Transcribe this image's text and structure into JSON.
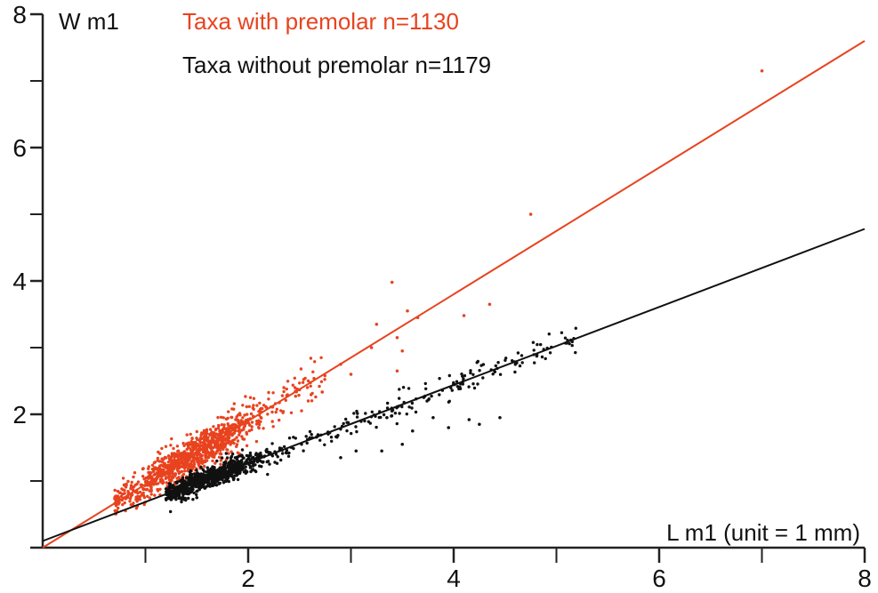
{
  "chart_data": {
    "type": "scatter",
    "title": "",
    "xlabel": "L m1 (unit = 1 mm)",
    "ylabel": "W m1",
    "xlim": [
      0,
      8
    ],
    "ylim": [
      0,
      8
    ],
    "x_ticks": [
      2,
      4,
      6,
      8
    ],
    "y_ticks": [
      2,
      4,
      6,
      8
    ],
    "x_minor_ticks": [
      1,
      3,
      5,
      7
    ],
    "y_minor_ticks": [
      1,
      3,
      5,
      7
    ],
    "grid": false,
    "legend_position": "top",
    "series": [
      {
        "name": "Taxa with premolar n=1130",
        "color": "#e8431f",
        "trendline": {
          "intercept": 0.0,
          "slope": 0.95
        },
        "point_cloud": {
          "count": 1130,
          "x_range": [
            0.7,
            2.75
          ],
          "cluster_center_x": 1.5,
          "residual_sd": 0.13
        },
        "notable_points": [
          {
            "x": 7.0,
            "y": 7.15
          },
          {
            "x": 4.75,
            "y": 5.0
          },
          {
            "x": 3.4,
            "y": 3.98
          },
          {
            "x": 3.55,
            "y": 3.55
          },
          {
            "x": 3.65,
            "y": 3.45
          },
          {
            "x": 4.1,
            "y": 3.48
          },
          {
            "x": 4.35,
            "y": 3.65
          },
          {
            "x": 3.25,
            "y": 3.35
          },
          {
            "x": 3.2,
            "y": 3.0
          },
          {
            "x": 3.45,
            "y": 3.15
          },
          {
            "x": 3.5,
            "y": 2.95
          },
          {
            "x": 3.0,
            "y": 2.6
          },
          {
            "x": 3.45,
            "y": 2.65
          },
          {
            "x": 2.9,
            "y": 2.75
          }
        ]
      },
      {
        "name": "Taxa without premolar n=1179",
        "color": "#111111",
        "trendline": {
          "intercept": 0.1,
          "slope": 0.585
        },
        "point_cloud": {
          "count": 1179,
          "x_range": [
            1.2,
            5.2
          ],
          "cluster_center_x": 1.6,
          "residual_sd": 0.07
        },
        "notable_points": [
          {
            "x": 3.6,
            "y": 1.75
          },
          {
            "x": 4.15,
            "y": 1.92
          },
          {
            "x": 4.45,
            "y": 1.95
          },
          {
            "x": 4.25,
            "y": 1.85
          },
          {
            "x": 3.95,
            "y": 1.8
          },
          {
            "x": 3.8,
            "y": 1.95
          },
          {
            "x": 3.5,
            "y": 1.55
          },
          {
            "x": 3.3,
            "y": 1.45
          },
          {
            "x": 2.9,
            "y": 1.35
          },
          {
            "x": 3.05,
            "y": 1.45
          },
          {
            "x": 3.35,
            "y": 1.95
          },
          {
            "x": 3.4,
            "y": 2.05
          },
          {
            "x": 1.5,
            "y": 0.75
          },
          {
            "x": 1.25,
            "y": 0.72
          }
        ]
      }
    ]
  }
}
